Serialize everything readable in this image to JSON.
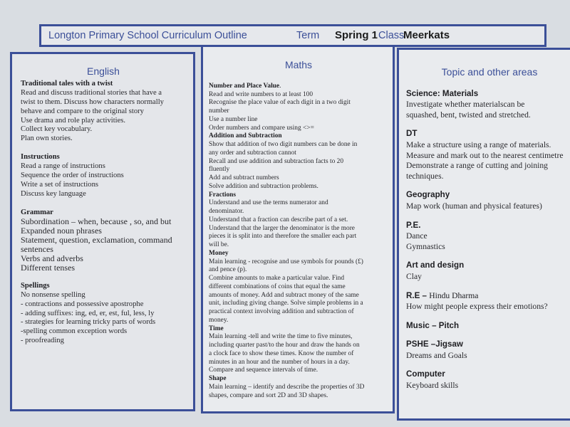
{
  "title": {
    "school": "Longton Primary School Curriculum Outline",
    "term_label": "Term",
    "term": "Spring 1",
    "class_label": "Class",
    "class": "Meerkats"
  },
  "colors": {
    "accent": "#3b4f98",
    "background": "#d9dde2"
  },
  "english": {
    "heading": "English",
    "sections": [
      {
        "heading": "Traditional tales with a twist",
        "lines": [
          "Read and discuss traditional stories that have a",
          "twist to them. Discuss how characters normally",
          "behave and compare to the original story",
          "Use  drama and role play activities.",
          "Collect key vocabulary.",
          "Plan own stories."
        ]
      },
      {
        "heading": "Instructions",
        "lines": [
          "Read a range of instructions",
          "Sequence the order of instructions",
          "Write a set of instructions",
          "Discuss key language"
        ]
      },
      {
        "heading": "Grammar",
        "lines": [
          "Subordination – when, because , so, and but",
          "Expanded noun phrases",
          "Statement, question, exclamation, command",
          "sentences",
          "Verbs and adverbs",
          "Different tenses"
        ]
      },
      {
        "heading": "Spellings",
        "lines": [
          "No nonsense spelling",
          "- contractions and possessive apostrophe",
          "- adding suffixes: ing, ed, er, est, ful, less, ly",
          "- strategies for learning tricky parts of words",
          "-spelling common exception words",
          "- proofreading"
        ]
      }
    ]
  },
  "maths": {
    "heading": "Maths",
    "sections": [
      {
        "heading": "Number and Place Value",
        "heading_suffix": ".",
        "lines": [
          "Read and write numbers to at least 100",
          "Recognise the place value of each digit in a two digit",
          "number",
          "Use a number line",
          "Order numbers and compare using <>="
        ]
      },
      {
        "heading": "Addition and Subtraction",
        "lines": [
          "Show that addition of two digit numbers can be done in",
          "any order and subtraction cannot",
          "Recall and use addition and subtraction facts to 20",
          "fluently",
          "Add and subtract numbers",
          "Solve addition and subtraction problems."
        ]
      },
      {
        "heading": "Fractions",
        "lines": [
          "Understand and use the terms numerator and",
          "denominator.",
          "Understand that a fraction can describe part of a set.",
          "Understand that the larger the denominator is the more",
          "pieces it is split into and therefore the smaller each part",
          "will be."
        ]
      },
      {
        "heading": "Money",
        "lines": [
          "Main learning - recognise and use symbols for pounds (£)",
          "and pence (p).",
          "Combine amounts to make a particular value.  Find",
          "different combinations of coins that equal the same",
          "amounts of money. Add and subtract money of the same",
          "unit, including giving change.  Solve simple problems in a",
          "practical context involving addition and subtraction of",
          "money."
        ]
      },
      {
        "heading": "Time",
        "lines": [
          "Main learning -tell and write the time to five minutes,",
          "including quarter past/to the hour and draw the hands on",
          "a clock face to show these times. Know the number of",
          "minutes in an hour and the number of hours in a day.",
          "Compare and sequence intervals of time."
        ]
      },
      {
        "heading": "Shape",
        "lines": [
          "Main learning – identify and describe the properties of 3D",
          "shapes, compare and sort 2D and 3D shapes."
        ]
      }
    ]
  },
  "topic": {
    "heading": "Topic and other areas",
    "sections": [
      {
        "heading": "Science: Materials",
        "lines": [
          "Investigate whether materialscan be",
          "squashed, bent, twisted and stretched."
        ]
      },
      {
        "heading": "DT",
        "lines": [
          "Make a structure using a range of materials.",
          "Measure and mark out to the nearest centimetre",
          "Demonstrate a range of cutting and joining",
          "techniques."
        ]
      },
      {
        "heading": "Geography",
        "lines": [
          "Map work (human and physical features)"
        ]
      },
      {
        "heading": "P.E.",
        "lines": [
          "Dance",
          "Gymnastics"
        ]
      },
      {
        "heading": "Art and design",
        "lines": [
          "Clay"
        ]
      },
      {
        "heading": "R.E – ",
        "heading_suffix": "Hindu Dharma",
        "lines": [
          "How might people express their emotions?"
        ]
      },
      {
        "heading": "Music – Pitch",
        "lines": []
      },
      {
        "heading": "PSHE –Jigsaw",
        "lines": [
          "Dreams and Goals"
        ]
      },
      {
        "heading": "Computer",
        "lines": [
          "Keyboard skills"
        ]
      }
    ]
  }
}
